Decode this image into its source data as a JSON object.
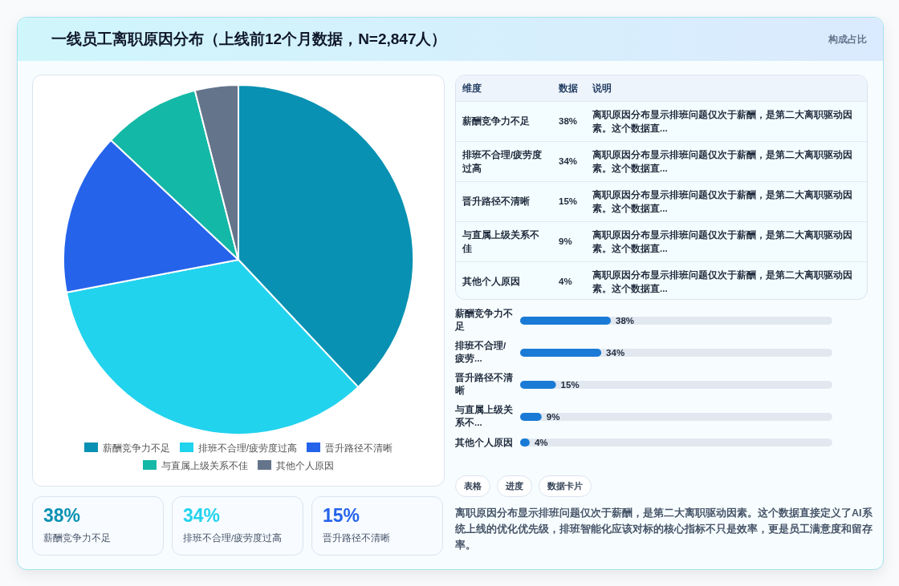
{
  "chart_data": [
    {
      "type": "other",
      "title": "一线员工离职原因分布（上线前12个月数据，N=2,847人）",
      "subtitle": "构成占比"
    },
    {
      "type": "pie",
      "categories": [
        "薪酬竞争力不足",
        "排班不合理/疲劳度过高",
        "晋升路径不清晰",
        "与直属上级关系不佳",
        "其他个人原因"
      ],
      "values": [
        38,
        34,
        15,
        9,
        4
      ],
      "colors": [
        "#0891b2",
        "#22d3ee",
        "#2563eb",
        "#14b8a6",
        "#64748b"
      ],
      "legend": "bottom"
    },
    {
      "type": "other",
      "annotations": [
        "维度",
        "数据",
        "说明",
        "薪酬竞争力不足",
        "38%",
        "离职原因分布显示排班问题仅次于薪酬，是第二大离职驱动因素。这个数据直...",
        "排班不合理/疲劳度过高",
        "34%",
        "离职原因分布显示排班问题仅次于薪酬，是第二大离职驱动因素。这个数据直...",
        "晋升路径不清晰",
        "15%",
        "离职原因分布显示排班问题仅次于薪酬，是第二大离职驱动因素。这个数据直...",
        "与直属上级关系不佳",
        "9%",
        "离职原因分布显示排班问题仅次于薪酬，是第二大离职驱动因素。这个数据直...",
        "其他个人原因",
        "4%",
        "离职原因分布显示排班问题仅次于薪酬，是第二大离职驱动因素。这个数据直..."
      ]
    },
    {
      "type": "bar",
      "orientation": "horizontal",
      "categories": [
        "薪酬竞争力不足",
        "排班不合理/疲劳...",
        "晋升路径不清晰",
        "与直属上级关系不...",
        "其他个人原因"
      ],
      "values": [
        38,
        34,
        15,
        9,
        4
      ],
      "value_labels": [
        "38%",
        "34%",
        "15%",
        "9%",
        "4%"
      ],
      "color": "#1a7bd6"
    },
    {
      "type": "other",
      "annotations": [
        "38%",
        "薪酬竞争力不足",
        "34%",
        "排班不合理/疲劳度过高",
        "15%",
        "晋升路径不清晰"
      ],
      "colors": [
        "#0891b2",
        "#22d3ee",
        "#2563eb"
      ]
    },
    {
      "type": "other",
      "annotations": [
        "表格",
        "进度",
        "数据卡片",
        "离职原因分布显示排班问题仅次于薪酬，是第二大离职驱动因素。这个数据直接定义了AI系统上线的优化优先级，排班智能化应该对标的核心指标不只是效率，更是员工满意度和留存率。"
      ]
    }
  ]
}
